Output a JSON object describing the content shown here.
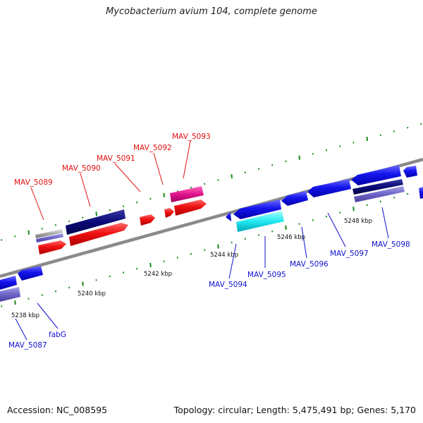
{
  "title": "Mycobacterium avium 104, complete genome",
  "footer": {
    "accession": "Accession: NC_008595",
    "summary": "Topology: circular; Length: 5,475,491 bp; Genes: 5,170"
  },
  "colors": {
    "forward_label": "#e01010",
    "reverse_label": "#1010d0",
    "backbone": "#888888",
    "tick": "#1a8a1a"
  },
  "ticks": [
    {
      "label": "5238 kbp"
    },
    {
      "label": "5240 kbp"
    },
    {
      "label": "5242 kbp"
    },
    {
      "label": "5244 kbp"
    },
    {
      "label": "5246 kbp"
    },
    {
      "label": "5248 kbp"
    }
  ],
  "forward_genes": [
    {
      "label": "MAV_5089"
    },
    {
      "label": "MAV_5090"
    },
    {
      "label": "MAV_5091"
    },
    {
      "label": "MAV_5092"
    },
    {
      "label": "MAV_5093"
    }
  ],
  "reverse_genes": [
    {
      "label": "MAV_5087"
    },
    {
      "label": "fabG"
    },
    {
      "label": "MAV_5094"
    },
    {
      "label": "MAV_5095"
    },
    {
      "label": "MAV_5096"
    },
    {
      "label": "MAV_5097"
    },
    {
      "label": "MAV_5098"
    }
  ]
}
